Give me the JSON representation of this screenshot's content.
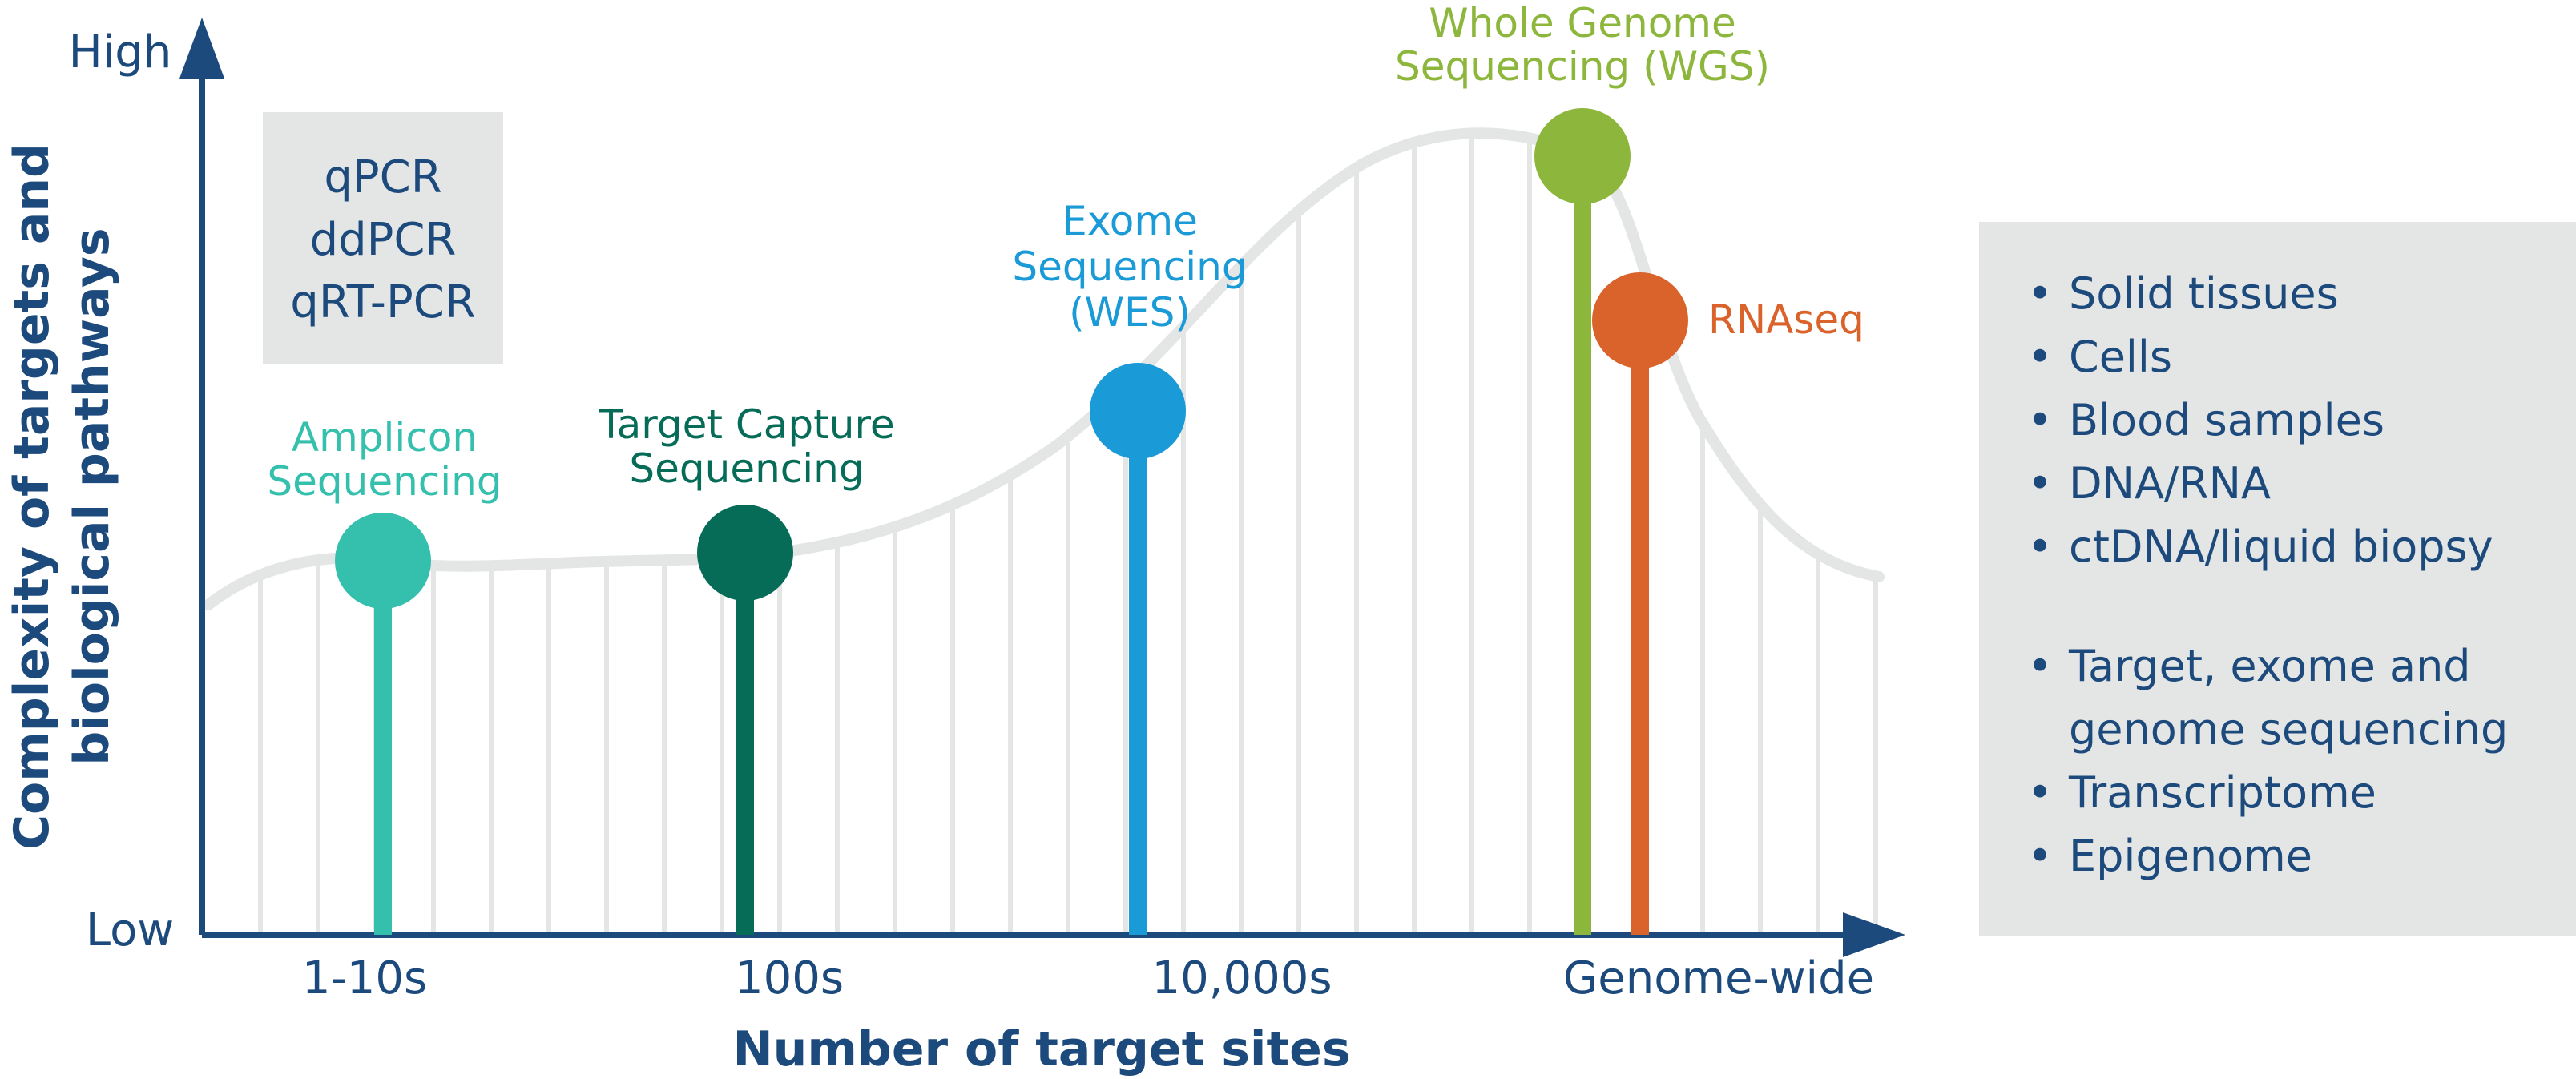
{
  "axes": {
    "y_high": "High",
    "y_low": "Low",
    "y_title_line1": "Complexity of targets and",
    "y_title_line2": "biological pathways",
    "x_title": "Number of target sites",
    "x_ticks": [
      "1-10s",
      "100s",
      "10,000s",
      "Genome-wide"
    ]
  },
  "pcr_box": {
    "lines": [
      "qPCR",
      "ddPCR",
      "qRT-PCR"
    ]
  },
  "methods": [
    {
      "label_lines": [
        "Amplicon",
        "Sequencing"
      ],
      "color": "#35bfad"
    },
    {
      "label_lines": [
        "Target Capture",
        "Sequencing"
      ],
      "color": "#066c58"
    },
    {
      "label_lines": [
        "Exome",
        "Sequencing",
        "(WES)"
      ],
      "color": "#1a9ad6"
    },
    {
      "label_lines": [
        "Whole Genome",
        "Sequencing (WGS)"
      ],
      "color": "#8db63c"
    },
    {
      "label_lines": [
        "RNAseq"
      ],
      "color": "#d9632b"
    }
  ],
  "info_panel": {
    "group1": [
      "Solid tissues",
      "Cells",
      "Blood samples",
      "DNA/RNA",
      "ctDNA/liquid biopsy"
    ],
    "group2": [
      "Target, exome and",
      "genome sequencing",
      "Transcriptome",
      "Epigenome"
    ]
  },
  "colors": {
    "axis": "#1d4a7c",
    "curve": "#e4e5e5",
    "panel": "#e4e5e5"
  }
}
